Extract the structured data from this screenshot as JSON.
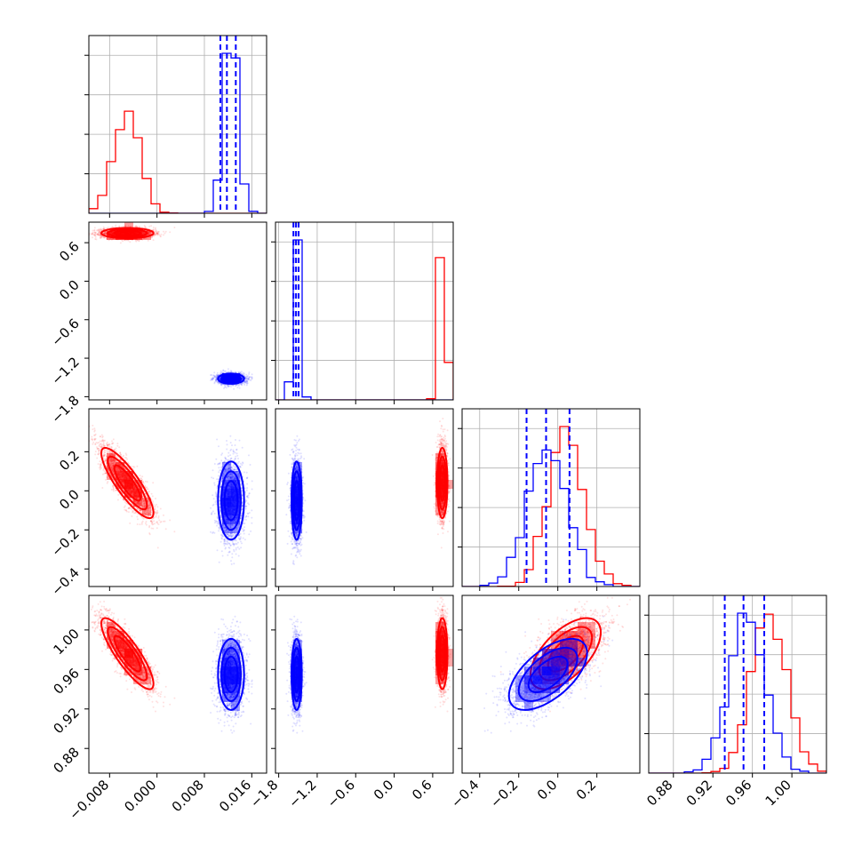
{
  "colors": {
    "series_a": "#ff0000",
    "series_b": "#0000ff",
    "grid": "#b0b0b0",
    "frame": "#000000",
    "background": "#ffffff"
  },
  "chart_data": {
    "type": "corner",
    "parameter_count": 4,
    "grid": true,
    "legend": "none",
    "series": [
      {
        "color": "#ff0000",
        "means": [
          -0.005,
          0.75,
          0.04,
          0.976
        ],
        "sds": [
          0.0022,
          0.04,
          0.09,
          0.018
        ],
        "correlations": [
          [
            1,
            0,
            -0.85,
            -0.85
          ],
          [
            0,
            1,
            0,
            0
          ],
          [
            -0.85,
            0,
            1,
            0.6
          ],
          [
            -0.85,
            0,
            0.6,
            1
          ]
        ]
      },
      {
        "color": "#0000ff",
        "means": [
          0.0125,
          -1.52,
          -0.05,
          0.955
        ],
        "sds": [
          0.0011,
          0.04,
          0.1,
          0.018
        ],
        "correlations": [
          [
            1,
            0,
            0,
            0
          ],
          [
            0,
            1,
            0,
            0
          ],
          [
            0,
            0,
            1,
            0.6
          ],
          [
            0,
            0,
            0.6,
            1
          ]
        ],
        "quantiles_dashed": [
          [
            0.0107,
            0.0118,
            0.0133
          ],
          [
            -1.57,
            -1.53,
            -1.49
          ],
          [
            -0.16,
            -0.06,
            0.06
          ],
          [
            0.932,
            0.951,
            0.972
          ]
        ]
      }
    ],
    "axes": [
      {
        "range": [
          -0.0115,
          0.0185
        ],
        "ticks": [
          -0.008,
          0.0,
          0.008,
          0.016
        ],
        "tick_labels": [
          "−0.008",
          "0.000",
          "0.008",
          "0.016"
        ]
      },
      {
        "range": [
          -1.85,
          0.92
        ],
        "ticks": [
          -1.8,
          -1.2,
          -0.6,
          0.0,
          0.6
        ],
        "tick_labels": [
          "−1.8",
          "−1.2",
          "−0.6",
          "0.0",
          "0.6"
        ]
      },
      {
        "range": [
          -0.49,
          0.42
        ],
        "ticks": [
          -0.4,
          -0.2,
          0.0,
          0.2
        ],
        "tick_labels": [
          "−0.4",
          "−0.2",
          "0.0",
          "0.2"
        ]
      },
      {
        "range": [
          0.855,
          1.035
        ],
        "ticks": [
          0.88,
          0.92,
          0.96,
          1.0
        ],
        "tick_labels": [
          "0.88",
          "0.92",
          "0.96",
          "1.00"
        ]
      }
    ]
  }
}
